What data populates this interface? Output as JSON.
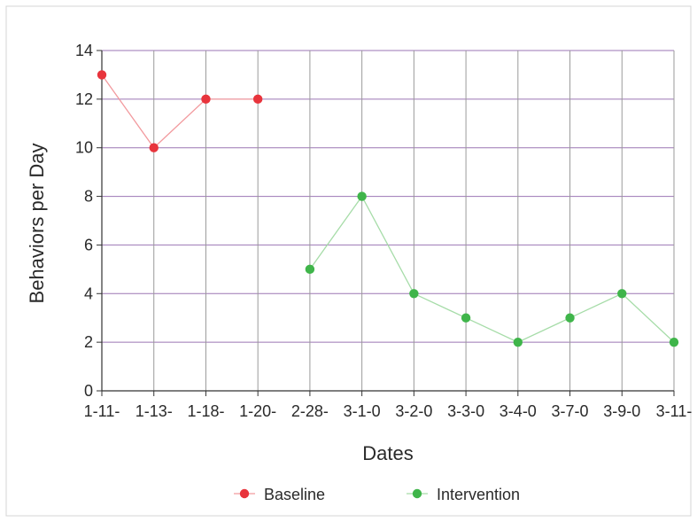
{
  "chart_data": {
    "type": "line",
    "xlabel": "Dates",
    "ylabel": "Behaviors per Day",
    "categories": [
      "1-11-",
      "1-13-",
      "1-18-",
      "1-20-",
      "2-28-",
      "3-1-0",
      "3-2-0",
      "3-3-0",
      "3-4-0",
      "3-7-0",
      "3-9-0",
      "3-11-"
    ],
    "ylim": [
      0,
      14
    ],
    "yticks": [
      "0",
      "2",
      "4",
      "6",
      "8",
      "10",
      "12",
      "14"
    ],
    "grid": true,
    "legend": "bottom",
    "series": [
      {
        "name": "Baseline",
        "color": "#e8343c",
        "line_color": "#f29a9e",
        "values": [
          13,
          10,
          12,
          12,
          null,
          null,
          null,
          null,
          null,
          null,
          null,
          null
        ]
      },
      {
        "name": "Intervention",
        "color": "#3fb54a",
        "line_color": "#a6dca8",
        "values": [
          null,
          null,
          null,
          null,
          5,
          8,
          4,
          3,
          2,
          3,
          4,
          2
        ]
      }
    ],
    "colors": {
      "grid_vertical": "#9a9a9a",
      "grid_horizontal": "#9b76b4",
      "axis": "#333333",
      "frame": "#cfcfcf"
    }
  }
}
